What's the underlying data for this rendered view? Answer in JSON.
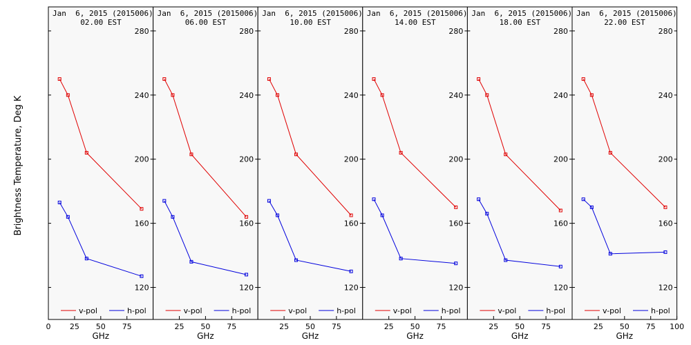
{
  "ylabel": "Brightness Temperature, Deg K",
  "colors": {
    "v": "#e00000",
    "h": "#0000dd",
    "frame": "#000000",
    "background": "#f8f8f8"
  },
  "chart_data": [
    {
      "type": "line",
      "title": "Jan  6, 2015 (2015006)",
      "subtitle": "02.00 EST",
      "xlabel": "GHz",
      "ylabel": "Brightness Temperature, Deg K",
      "xlim": [
        0,
        100
      ],
      "ylim": [
        100,
        295
      ],
      "xticks": [
        0,
        25,
        50,
        75
      ],
      "yticks": [
        120,
        160,
        200,
        240,
        280
      ],
      "x": [
        10.7,
        18.7,
        36.5,
        89
      ],
      "series": [
        {
          "name": "v-pol",
          "values": [
            250,
            240,
            204,
            169
          ]
        },
        {
          "name": "h-pol",
          "values": [
            173,
            164,
            138,
            127
          ]
        }
      ],
      "legend": "bottom"
    },
    {
      "type": "line",
      "title": "Jan  6, 2015 (2015006)",
      "subtitle": "06.00 EST",
      "xlabel": "GHz",
      "ylabel": "Brightness Temperature, Deg K",
      "xlim": [
        0,
        100
      ],
      "ylim": [
        100,
        295
      ],
      "xticks": [
        25,
        50,
        75
      ],
      "yticks": [
        120,
        160,
        200,
        240,
        280
      ],
      "x": [
        10.7,
        18.7,
        36.5,
        89
      ],
      "series": [
        {
          "name": "v-pol",
          "values": [
            250,
            240,
            203,
            164
          ]
        },
        {
          "name": "h-pol",
          "values": [
            174,
            164,
            136,
            128
          ]
        }
      ],
      "legend": "bottom"
    },
    {
      "type": "line",
      "title": "Jan  6, 2015 (2015006)",
      "subtitle": "10.00 EST",
      "xlabel": "GHz",
      "ylabel": "Brightness Temperature, Deg K",
      "xlim": [
        0,
        100
      ],
      "ylim": [
        100,
        295
      ],
      "xticks": [
        25,
        50,
        75
      ],
      "yticks": [
        120,
        160,
        200,
        240,
        280
      ],
      "x": [
        10.7,
        18.7,
        36.5,
        89
      ],
      "series": [
        {
          "name": "v-pol",
          "values": [
            250,
            240,
            203,
            165
          ]
        },
        {
          "name": "h-pol",
          "values": [
            174,
            165,
            137,
            130
          ]
        }
      ],
      "legend": "bottom"
    },
    {
      "type": "line",
      "title": "Jan  6, 2015 (2015006)",
      "subtitle": "14.00 EST",
      "xlabel": "GHz",
      "ylabel": "Brightness Temperature, Deg K",
      "xlim": [
        0,
        100
      ],
      "ylim": [
        100,
        295
      ],
      "xticks": [
        25,
        50,
        75
      ],
      "yticks": [
        120,
        160,
        200,
        240,
        280
      ],
      "x": [
        10.7,
        18.7,
        36.5,
        89
      ],
      "series": [
        {
          "name": "v-pol",
          "values": [
            250,
            240,
            204,
            170
          ]
        },
        {
          "name": "h-pol",
          "values": [
            175,
            165,
            138,
            135
          ]
        }
      ],
      "legend": "bottom"
    },
    {
      "type": "line",
      "title": "Jan  6, 2015 (2015006)",
      "subtitle": "18.00 EST",
      "xlabel": "GHz",
      "ylabel": "Brightness Temperature, Deg K",
      "xlim": [
        0,
        100
      ],
      "ylim": [
        100,
        295
      ],
      "xticks": [
        25,
        50,
        75
      ],
      "yticks": [
        120,
        160,
        200,
        240,
        280
      ],
      "x": [
        10.7,
        18.7,
        36.5,
        89
      ],
      "series": [
        {
          "name": "v-pol",
          "values": [
            250,
            240,
            203,
            168
          ]
        },
        {
          "name": "h-pol",
          "values": [
            175,
            166,
            137,
            133
          ]
        }
      ],
      "legend": "bottom"
    },
    {
      "type": "line",
      "title": "Jan  6, 2015 (2015006)",
      "subtitle": "22.00 EST",
      "xlabel": "GHz",
      "ylabel": "Brightness Temperature, Deg K",
      "xlim": [
        0,
        100
      ],
      "ylim": [
        100,
        295
      ],
      "xticks": [
        25,
        50,
        75,
        100
      ],
      "yticks": [
        120,
        160,
        200,
        240,
        280
      ],
      "x": [
        10.7,
        18.7,
        36.5,
        89
      ],
      "series": [
        {
          "name": "v-pol",
          "values": [
            250,
            240,
            204,
            170
          ]
        },
        {
          "name": "h-pol",
          "values": [
            175,
            170,
            141,
            142
          ]
        }
      ],
      "legend": "bottom"
    }
  ]
}
